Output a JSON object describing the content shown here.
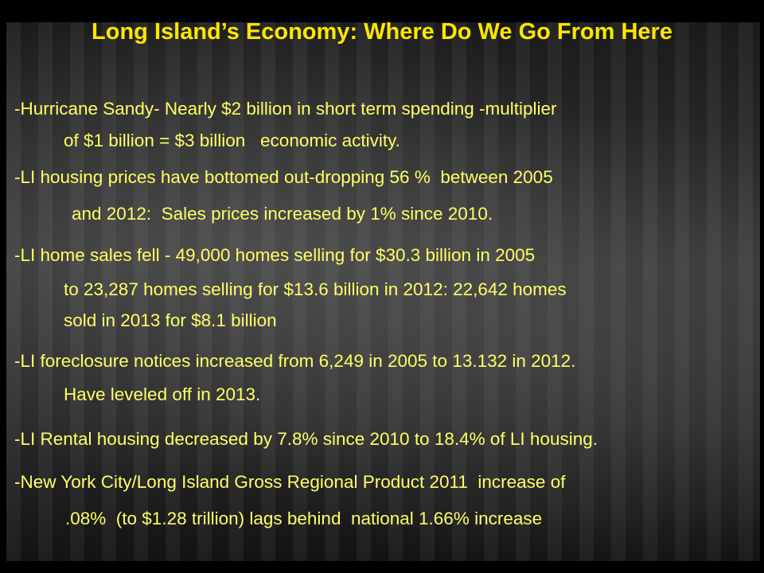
{
  "title": "Long Island’s Economy: Where Do We Go From Here",
  "bullets": [
    {
      "lines": [
        "-Hurricane Sandy- Nearly $2 billion in short term spending -multiplier",
        "of $1 billion = $3 billion   economic activity."
      ]
    },
    {
      "lines": [
        "-LI housing prices have bottomed out-dropping 56 %  between 2005",
        "and 2012:  Sales prices increased by 1% since 2010."
      ]
    },
    {
      "lines": [
        "-LI home sales fell - 49,000 homes selling for $30.3 billion in 2005",
        "to 23,287 homes selling for $13.6 billion in 2012: 22,642 homes",
        "sold in 2013 for $8.1 billion"
      ]
    },
    {
      "lines": [
        "-LI foreclosure notices increased from 6,249 in 2005 to 13.132 in 2012.",
        "Have leveled off in 2013."
      ]
    },
    {
      "lines": [
        "-LI Rental housing decreased by 7.8% since 2010 to 18.4% of LI housing."
      ]
    },
    {
      "lines": [
        "-New York City/Long Island Gross Regional Product 2011  increase of",
        ".08%  (to $1.28 trillion) lags behind  national 1.66% increase"
      ]
    }
  ]
}
